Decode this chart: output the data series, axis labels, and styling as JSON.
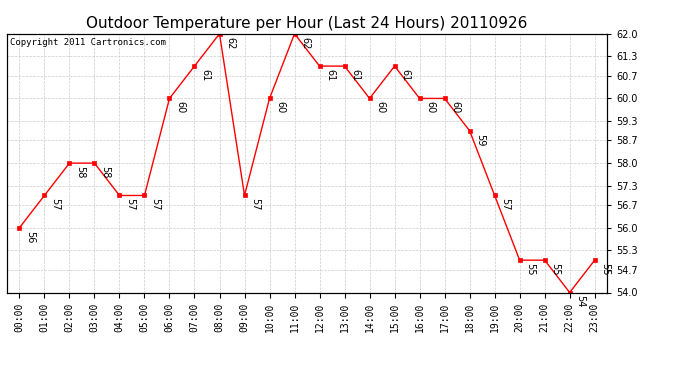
{
  "title": "Outdoor Temperature per Hour (Last 24 Hours) 20110926",
  "copyright_text": "Copyright 2011 Cartronics.com",
  "hours": [
    "00:00",
    "01:00",
    "02:00",
    "03:00",
    "04:00",
    "05:00",
    "06:00",
    "07:00",
    "08:00",
    "09:00",
    "10:00",
    "11:00",
    "12:00",
    "13:00",
    "14:00",
    "15:00",
    "16:00",
    "17:00",
    "18:00",
    "19:00",
    "20:00",
    "21:00",
    "22:00",
    "23:00"
  ],
  "temps": [
    56,
    57,
    58,
    58,
    57,
    57,
    60,
    61,
    62,
    57,
    60,
    62,
    61,
    61,
    60,
    61,
    60,
    60,
    59,
    57,
    55,
    55,
    54,
    55
  ],
  "ylim_min": 54.0,
  "ylim_max": 62.0,
  "yticks": [
    54.0,
    54.7,
    55.3,
    56.0,
    56.7,
    57.3,
    58.0,
    58.7,
    59.3,
    60.0,
    60.7,
    61.3,
    62.0
  ],
  "line_color": "red",
  "marker_color": "red",
  "bg_color": "white",
  "grid_color": "#cccccc",
  "title_fontsize": 11,
  "annotation_fontsize": 7,
  "tick_fontsize": 7,
  "copyright_fontsize": 6.5
}
